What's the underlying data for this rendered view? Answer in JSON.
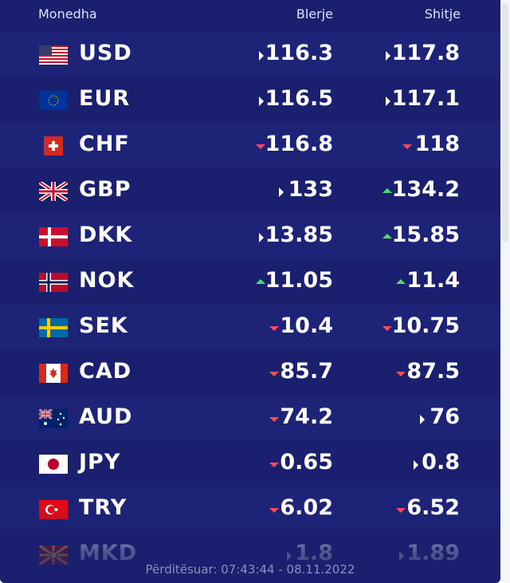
{
  "header": {
    "currency": "Monedha",
    "buy": "Blerje",
    "sell": "Shitje"
  },
  "footer": "Përditësuar: 07:43:44 - 08.11.2022",
  "rows": [
    {
      "code": "USD",
      "buy": "116.3",
      "buy_trend": "right",
      "sell": "117.8",
      "sell_trend": "right",
      "flag": "us-flag-icon"
    },
    {
      "code": "EUR",
      "buy": "116.5",
      "buy_trend": "right",
      "sell": "117.1",
      "sell_trend": "right",
      "flag": "eu-flag-icon"
    },
    {
      "code": "CHF",
      "buy": "116.8",
      "buy_trend": "down",
      "sell": "118",
      "sell_trend": "down",
      "flag": "ch-flag-icon"
    },
    {
      "code": "GBP",
      "buy": "133",
      "buy_trend": "right",
      "sell": "134.2",
      "sell_trend": "up",
      "flag": "gb-flag-icon"
    },
    {
      "code": "DKK",
      "buy": "13.85",
      "buy_trend": "right",
      "sell": "15.85",
      "sell_trend": "up",
      "flag": "dk-flag-icon"
    },
    {
      "code": "NOK",
      "buy": "11.05",
      "buy_trend": "up",
      "sell": "11.4",
      "sell_trend": "up",
      "flag": "no-flag-icon"
    },
    {
      "code": "SEK",
      "buy": "10.4",
      "buy_trend": "down",
      "sell": "10.75",
      "sell_trend": "down",
      "flag": "se-flag-icon"
    },
    {
      "code": "CAD",
      "buy": "85.7",
      "buy_trend": "down",
      "sell": "87.5",
      "sell_trend": "down",
      "flag": "ca-flag-icon"
    },
    {
      "code": "AUD",
      "buy": "74.2",
      "buy_trend": "down",
      "sell": "76",
      "sell_trend": "right",
      "flag": "au-flag-icon"
    },
    {
      "code": "JPY",
      "buy": "0.65",
      "buy_trend": "down",
      "sell": "0.8",
      "sell_trend": "right",
      "flag": "jp-flag-icon"
    },
    {
      "code": "TRY",
      "buy": "6.02",
      "buy_trend": "down",
      "sell": "6.52",
      "sell_trend": "down",
      "flag": "tr-flag-icon"
    },
    {
      "code": "MKD",
      "buy": "1.8",
      "buy_trend": "right",
      "sell": "1.89",
      "sell_trend": "right",
      "flag": "mk-flag-icon"
    }
  ],
  "colors": {
    "panel": "#1a1f6e",
    "up": "#47e06a",
    "down": "#ff4a5c",
    "neutral": "#ffffff"
  }
}
